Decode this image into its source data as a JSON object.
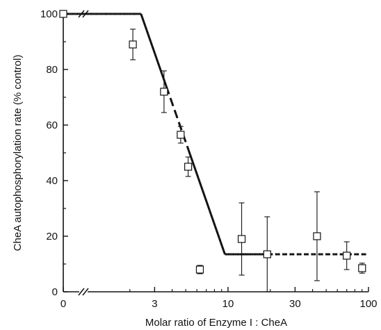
{
  "chart_data": {
    "type": "scatter",
    "title": "",
    "xlabel": "Molar ratio of Enzyme I : CheA",
    "ylabel": "CheA autophosphorylation rate (% control)",
    "x_scale": "log with axis break between 0 and 1",
    "xlim": [
      0,
      100
    ],
    "ylim": [
      0,
      100
    ],
    "x_ticks": [
      0,
      3,
      10,
      30,
      100
    ],
    "y_ticks": [
      0,
      20,
      40,
      60,
      80,
      100
    ],
    "grid": false,
    "series": [
      {
        "marker": "open-square",
        "points": [
          {
            "x": 0,
            "y": 100,
            "err": 0
          },
          {
            "x": 2.1,
            "y": 89,
            "err": 5.5
          },
          {
            "x": 3.5,
            "y": 72,
            "err": 7.5
          },
          {
            "x": 4.6,
            "y": 56.5,
            "err": 3
          },
          {
            "x": 5.2,
            "y": 45,
            "err": 3.5
          },
          {
            "x": 6.3,
            "y": 8,
            "err": 1.5
          },
          {
            "x": 12.5,
            "y": 19,
            "err": 13
          },
          {
            "x": 19,
            "y": 13.5,
            "err": 13.5
          },
          {
            "x": 43,
            "y": 20,
            "err": 16
          },
          {
            "x": 70,
            "y": 13,
            "err": 5
          },
          {
            "x": 90,
            "y": 8.5,
            "err": 1.8
          }
        ]
      }
    ],
    "fit_line": {
      "points": [
        [
          0,
          100
        ],
        [
          2.4,
          100
        ],
        [
          9.5,
          13.5
        ],
        [
          100,
          13.5
        ]
      ],
      "dashed_segments": [
        [
          3.6,
          5.2
        ],
        [
          20,
          100
        ]
      ]
    },
    "axis_break": "//"
  }
}
